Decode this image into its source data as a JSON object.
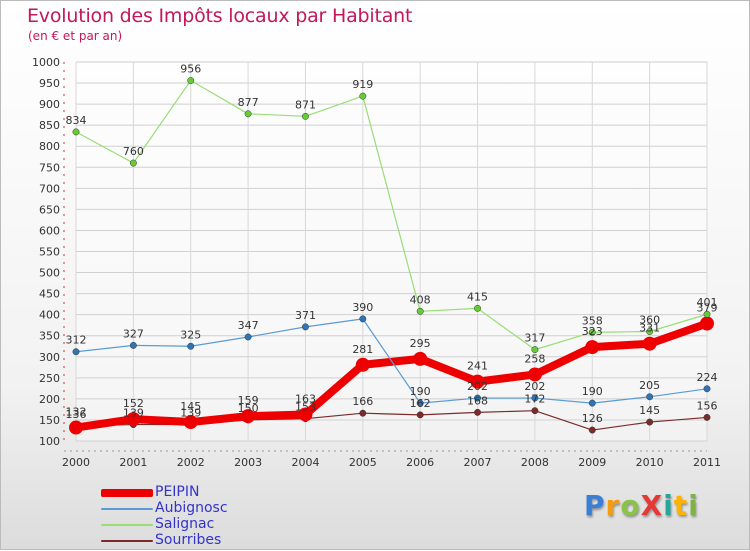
{
  "title": "Evolution des Impôts locaux par Habitant",
  "subtitle": "(en € et par an)",
  "logo": {
    "text": "ProXiti",
    "letters": [
      "P",
      "r",
      "o",
      "X",
      "i",
      "t",
      "i"
    ],
    "colors": [
      "#3b7fd4",
      "#f39c12",
      "#8bc34a",
      "#e53935",
      "#26a69a",
      "#ffb300",
      "#7cb342"
    ]
  },
  "chart_data": {
    "type": "line",
    "title": "Evolution des Impôts locaux par Habitant",
    "subtitle": "(en € et par an)",
    "xlabel": "",
    "ylabel": "",
    "x": [
      "2000",
      "2001",
      "2002",
      "2003",
      "2004",
      "2005",
      "2006",
      "2007",
      "2008",
      "2009",
      "2010",
      "2011"
    ],
    "ylim": [
      100,
      1000
    ],
    "yticks": [
      100,
      150,
      200,
      250,
      300,
      350,
      400,
      450,
      500,
      550,
      600,
      650,
      700,
      750,
      800,
      850,
      900,
      950,
      1000
    ],
    "grid": true,
    "legend_position": "bottom-left",
    "series": [
      {
        "name": "Sourribes",
        "color": "#7b2b2b",
        "marker": "#7b2b2b",
        "width": 1.2,
        "label_dy": -8,
        "values": [
          136,
          139,
          139,
          150,
          153,
          166,
          162,
          168,
          172,
          126,
          145,
          156
        ],
        "labels": [
          "136",
          "139",
          "139",
          "150",
          "153",
          "166",
          "162",
          "168",
          "172",
          "126",
          "145",
          "156"
        ]
      },
      {
        "name": "PEIPIN",
        "color": "#ee0000",
        "marker": "#ee0000",
        "width": 8,
        "label_dy": -12,
        "values": [
          132,
          152,
          145,
          159,
          163,
          281,
          295,
          241,
          258,
          323,
          331,
          379
        ],
        "labels": [
          "132",
          "152",
          "145",
          "159",
          "163",
          "281",
          "295",
          "241",
          "258",
          "323",
          "331",
          "379"
        ]
      },
      {
        "name": "Aubignosc",
        "color": "#5a9bd5",
        "marker": "#2e75b6",
        "width": 1.2,
        "label_dy": -8,
        "values": [
          312,
          327,
          325,
          347,
          371,
          390,
          190,
          202,
          202,
          190,
          205,
          224
        ],
        "labels": [
          "312",
          "327",
          "325",
          "347",
          "371",
          "390",
          "190",
          "202",
          "202",
          "190",
          "205",
          "224"
        ]
      },
      {
        "name": "Salignac",
        "color": "#99dd77",
        "marker": "#66cc33",
        "width": 1.2,
        "label_dy": -8,
        "values": [
          834,
          760,
          956,
          877,
          871,
          919,
          408,
          415,
          317,
          358,
          360,
          401
        ],
        "labels": [
          "834",
          "760",
          "956",
          "877",
          "871",
          "919",
          "408",
          "415",
          "317",
          "358",
          "360",
          "401"
        ]
      }
    ],
    "legend_order": [
      "PEIPIN",
      "Aubignosc",
      "Salignac",
      "Sourribes"
    ]
  }
}
